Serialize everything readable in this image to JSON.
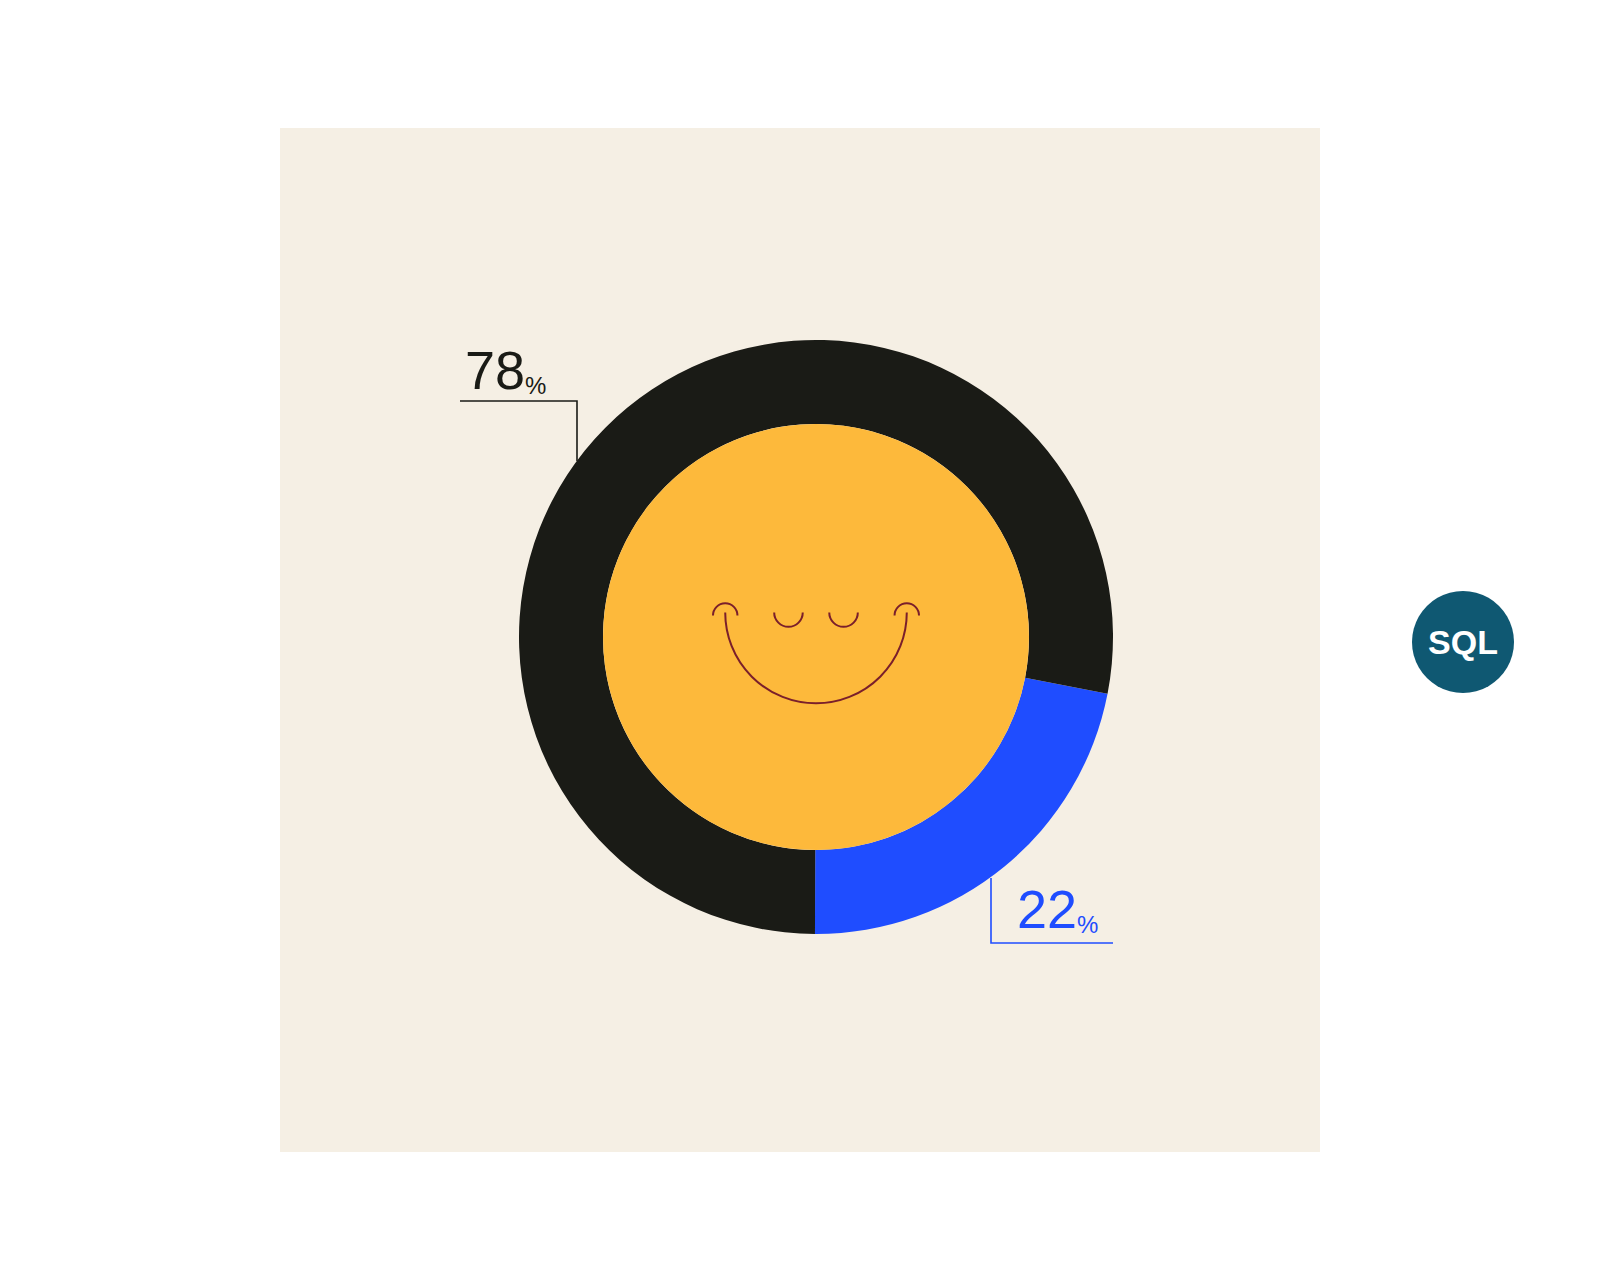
{
  "chart_data": {
    "type": "pie",
    "values": [
      78,
      22
    ],
    "value_labels": [
      "78%",
      "22%"
    ],
    "colors": [
      "#1a1b16",
      "#1f4dff"
    ],
    "data_labels": true,
    "annotations": [
      "SQL"
    ]
  }
}
